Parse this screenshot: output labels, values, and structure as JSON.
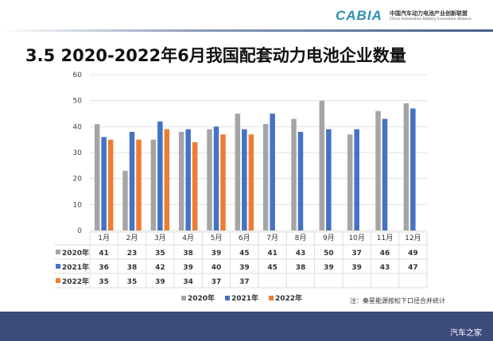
{
  "header": {
    "logo": "CABIA",
    "org_cn": "中国汽车动力电池产业创新联盟",
    "org_en": "China Automotive Battery Innovation Alliance"
  },
  "title": "3.5 2020-2022年6月我国配套动力电池企业数量",
  "note": "注：秦星能源按松下口径合并统计",
  "watermark": "汽车之家",
  "chart_data": {
    "type": "bar",
    "categories": [
      "1月",
      "2月",
      "3月",
      "4月",
      "5月",
      "6月",
      "7月",
      "8月",
      "9月",
      "10月",
      "11月",
      "12月"
    ],
    "series": [
      {
        "name": "2020年",
        "color": "#a5a5a5",
        "values": [
          41,
          23,
          35,
          38,
          39,
          45,
          41,
          43,
          50,
          37,
          46,
          49
        ]
      },
      {
        "name": "2021年",
        "color": "#4472c4",
        "values": [
          36,
          38,
          42,
          39,
          40,
          39,
          45,
          38,
          39,
          39,
          43,
          47
        ]
      },
      {
        "name": "2022年",
        "color": "#ed7d31",
        "values": [
          35,
          35,
          39,
          34,
          37,
          37,
          null,
          null,
          null,
          null,
          null,
          null
        ]
      }
    ],
    "ylim": [
      0,
      60
    ],
    "yticks": [
      0,
      10,
      20,
      30,
      40,
      50,
      60
    ],
    "grid": true,
    "legend": "bottom",
    "data_table": true
  }
}
